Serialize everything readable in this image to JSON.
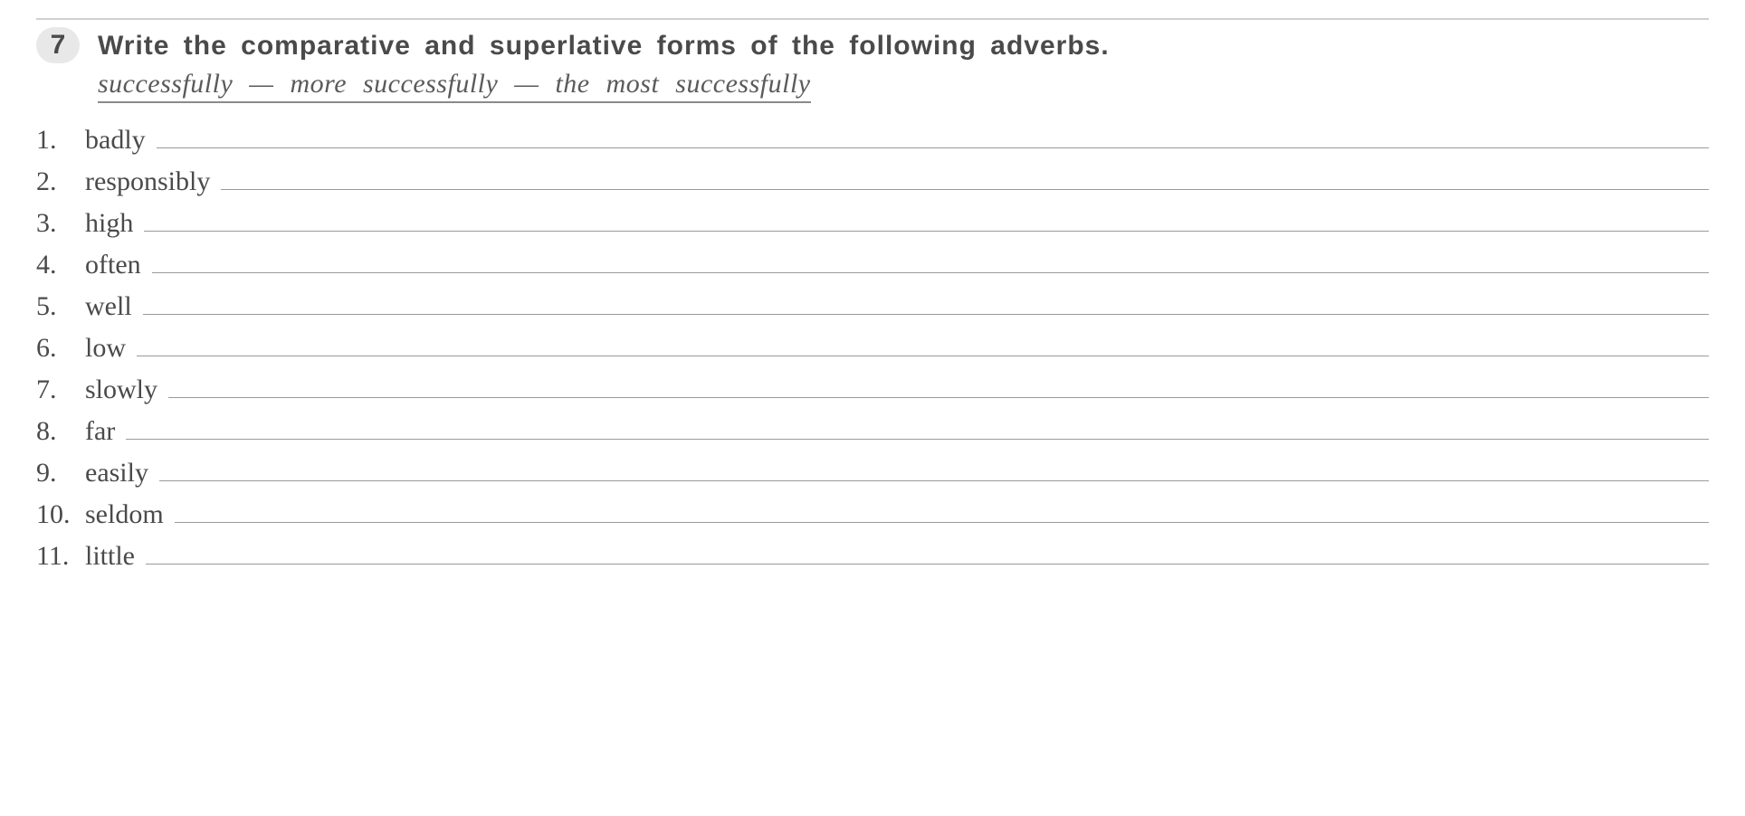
{
  "exercise": {
    "number": "7",
    "instruction": "Write the comparative and superlative forms of the following adverbs.",
    "example": "successfully  —  more  successfully  —  the  most  successfully"
  },
  "items": [
    {
      "num": "1.",
      "word": "badly"
    },
    {
      "num": "2.",
      "word": "responsibly"
    },
    {
      "num": "3.",
      "word": "high"
    },
    {
      "num": "4.",
      "word": "often"
    },
    {
      "num": "5.",
      "word": "well"
    },
    {
      "num": "6.",
      "word": "low"
    },
    {
      "num": "7.",
      "word": "slowly"
    },
    {
      "num": "8.",
      "word": "far"
    },
    {
      "num": "9.",
      "word": "easily"
    },
    {
      "num": "10.",
      "word": "seldom"
    },
    {
      "num": "11.",
      "word": "little"
    }
  ],
  "styles": {
    "background_color": "#ffffff",
    "text_color": "#4a4a4a",
    "line_color": "#9a9a9a",
    "badge_bg": "#e8e8e8",
    "instruction_fontsize": 30,
    "example_fontsize": 30,
    "item_fontsize": 30
  }
}
